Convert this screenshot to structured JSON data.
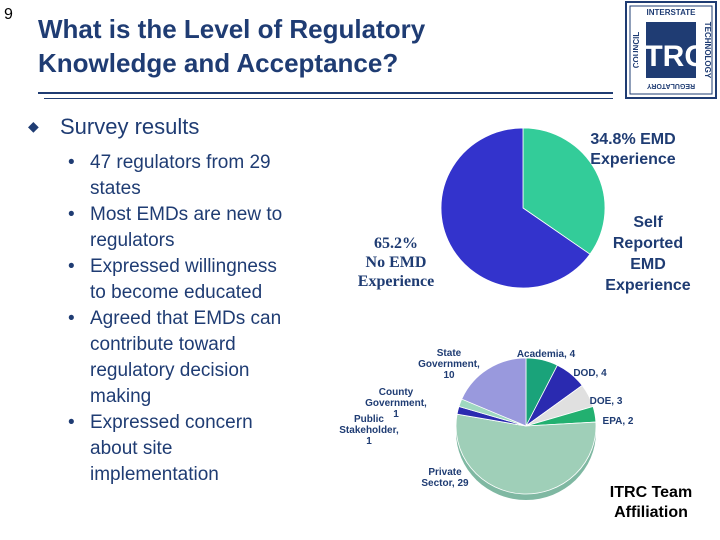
{
  "slide_number": "9",
  "title": [
    "What is the Level of Regulatory",
    "Knowledge and Acceptance?"
  ],
  "logo": {
    "top": "INTERSTATE",
    "right": "TECHNOLOGY",
    "bottom": "REGULATORY",
    "left": "COUNCIL",
    "center": "ITRC"
  },
  "main_bullet": "Survey results",
  "sub_bullets": [
    [
      "47 regulators from 29",
      "states"
    ],
    [
      "Most EMDs are new to",
      "regulators"
    ],
    [
      "Expressed willingness",
      "to become educated"
    ],
    [
      "Agreed that EMDs can",
      "contribute toward",
      "regulatory decision",
      "making"
    ],
    [
      "Expressed concern",
      "about site",
      "implementation"
    ]
  ],
  "chart_data": [
    {
      "type": "pie",
      "title": "",
      "slices": [
        {
          "label": "34.8% EMD Experience",
          "value": 34.8,
          "color": "#33cc99"
        },
        {
          "label": "65.2% No EMD Experience",
          "value": 65.2,
          "color": "#3333cc"
        }
      ],
      "annotations": [
        "34.8% EMD",
        "Experience",
        "65.2%",
        "No EMD",
        "Experience",
        "Self",
        "Reported",
        "EMD",
        "Experience"
      ]
    },
    {
      "type": "pie",
      "title": "ITRC Team Affiliation",
      "slices": [
        {
          "label": "Academia, 4",
          "value": 4,
          "color": "#1aa37a"
        },
        {
          "label": "DOD, 4",
          "value": 4,
          "color": "#2a2ab0"
        },
        {
          "label": "DOE, 3",
          "value": 3,
          "color": "#e0e0e0"
        },
        {
          "label": "EPA, 2",
          "value": 2,
          "color": "#22b070"
        },
        {
          "label": "Private Sector, 29",
          "value": 29,
          "color": "#9fcfb8"
        },
        {
          "label": "Public Stakeholder, 1",
          "value": 1,
          "color": "#2a2ab0"
        },
        {
          "label": "County Government, 1",
          "value": 1,
          "color": "#9fd8c0"
        },
        {
          "label": "State Government, 10",
          "value": 10,
          "color": "#9999dd"
        }
      ]
    }
  ],
  "chart1_labels": {
    "a": [
      "34.8% EMD",
      "Experience"
    ],
    "b": [
      "65.2%",
      "No EMD",
      "Experience"
    ],
    "c": [
      "Self",
      "Reported",
      "EMD",
      "Experience"
    ]
  },
  "chart2_labels": {
    "state": [
      "State",
      "Government,",
      "10"
    ],
    "academia": [
      "Academia, 4"
    ],
    "dod": [
      "DOD, 4"
    ],
    "county": [
      "County",
      "Government,",
      "1"
    ],
    "doe": [
      "DOE, 3"
    ],
    "public": [
      "Public",
      "Stakeholder,",
      "1"
    ],
    "epa": [
      "EPA, 2"
    ],
    "private": [
      "Private",
      "Sector, 29"
    ],
    "team": [
      "ITRC Team",
      "Affiliation"
    ]
  }
}
